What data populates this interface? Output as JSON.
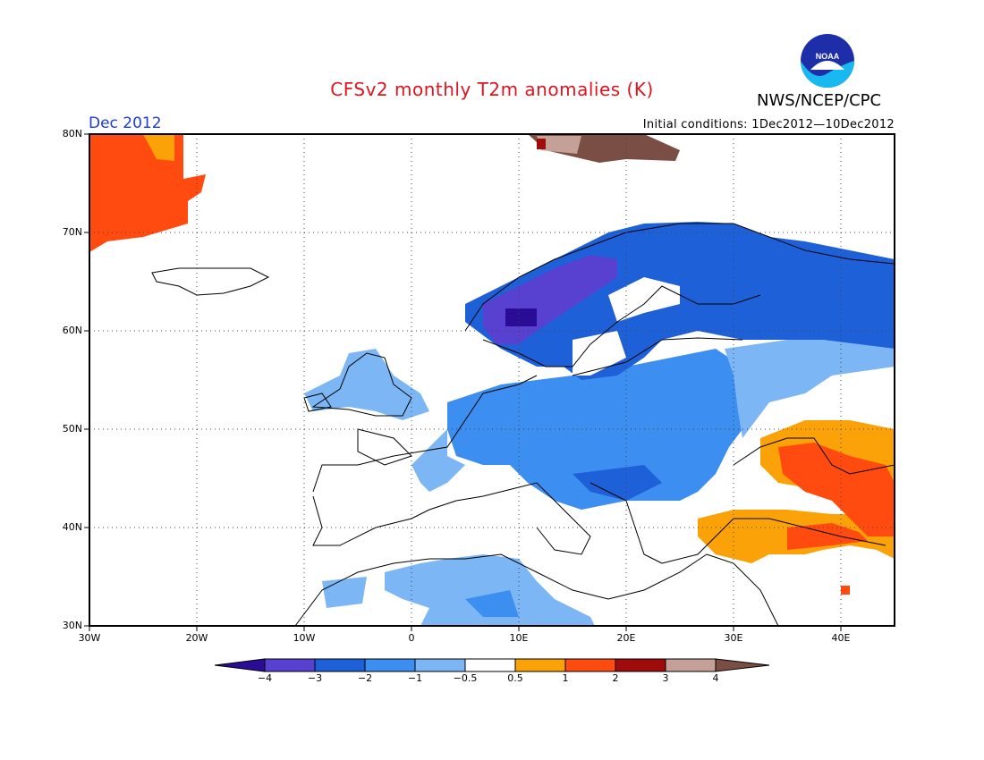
{
  "header": {
    "title": "CFSv2 monthly T2m anomalies (K)",
    "organization": "NWS/NCEP/CPC",
    "month": "Dec 2012",
    "initial_conditions": "Initial conditions: 1Dec2012—10Dec2012"
  },
  "logo": {
    "text": "NOAA",
    "icon": "noaa-logo-icon"
  },
  "map": {
    "region": "Europe",
    "lat_labels": [
      "80N",
      "70N",
      "60N",
      "50N",
      "40N",
      "30N"
    ],
    "lon_labels": [
      "30W",
      "20W",
      "10W",
      "0",
      "10E",
      "20E",
      "30E",
      "40E"
    ],
    "lat_range": [
      30,
      80
    ],
    "lon_range": [
      -30,
      45
    ],
    "grid": true
  },
  "colorbar": {
    "labels": [
      "−4",
      "−3",
      "−2",
      "−1",
      "−0.5",
      "0.5",
      "1",
      "2",
      "3",
      "4"
    ],
    "colors": [
      "#2a0c96",
      "#5840d0",
      "#1e60d8",
      "#3c8ef0",
      "#7cb6f4",
      "#ffffff",
      "#fba208",
      "#ff4a10",
      "#a00c0c",
      "#c4a096",
      "#7a4e44"
    ]
  }
}
